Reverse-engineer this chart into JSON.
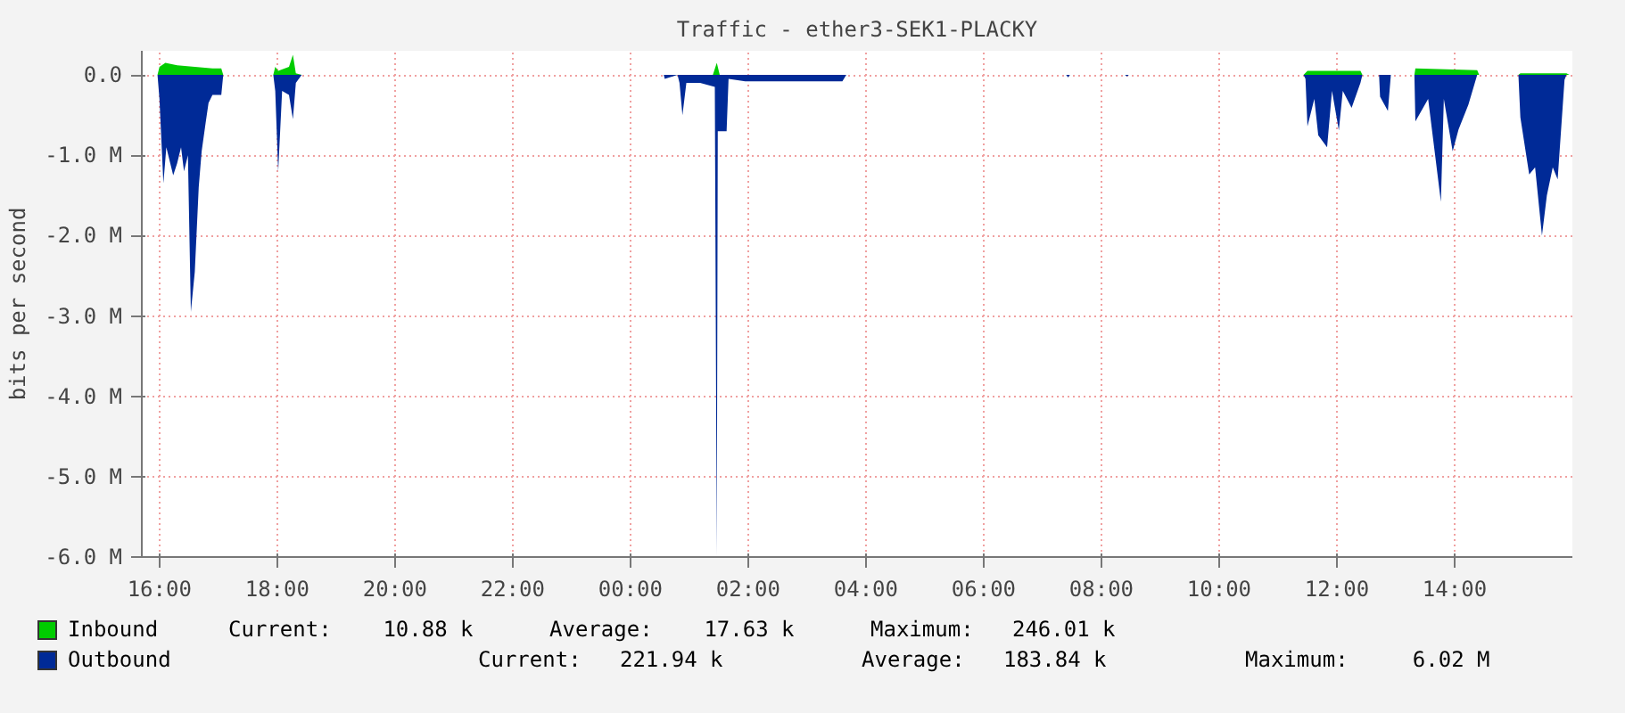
{
  "chart_data": {
    "type": "area",
    "title": "Traffic - ether3-SEK1-PLACKY",
    "ylabel": "bits per second",
    "xlim": [
      "2000-01-01T15:42",
      "2000-01-02T16:00"
    ],
    "ylim": [
      -6.0,
      0.3
    ],
    "xticks": [
      {
        "value": "2000-01-01T16:00",
        "label": "16:00"
      },
      {
        "value": "2000-01-01T18:00",
        "label": "18:00"
      },
      {
        "value": "2000-01-01T20:00",
        "label": "20:00"
      },
      {
        "value": "2000-01-01T22:00",
        "label": "22:00"
      },
      {
        "value": "2000-01-02T00:00",
        "label": "00:00"
      },
      {
        "value": "2000-01-02T02:00",
        "label": "02:00"
      },
      {
        "value": "2000-01-02T04:00",
        "label": "04:00"
      },
      {
        "value": "2000-01-02T06:00",
        "label": "06:00"
      },
      {
        "value": "2000-01-02T08:00",
        "label": "08:00"
      },
      {
        "value": "2000-01-02T10:00",
        "label": "10:00"
      },
      {
        "value": "2000-01-02T12:00",
        "label": "12:00"
      },
      {
        "value": "2000-01-02T14:00",
        "label": "14:00"
      }
    ],
    "yticks": [
      {
        "value": -6,
        "label": "-6.0 M"
      },
      {
        "value": -5,
        "label": "-5.0 M"
      },
      {
        "value": -4,
        "label": "-4.0 M"
      },
      {
        "value": -3,
        "label": "-3.0 M"
      },
      {
        "value": -2,
        "label": "-2.0 M"
      },
      {
        "value": -1,
        "label": "-1.0 M"
      },
      {
        "value": 0,
        "label": "0.0"
      }
    ],
    "grid": true,
    "legend": "bottom",
    "annotations": [
      "Current:    10.88 k",
      "Average:    17.63 k",
      "Maximum:   246.01 k",
      "Current:   221.94 k",
      "Average:   183.84 k",
      "Maximum:     6.02 M"
    ],
    "series": [
      {
        "name": "Outbound",
        "color": "#002a97",
        "x": [
          "2000-01-01T15:48",
          "2000-01-01T15:58",
          "2000-01-01T16:00",
          "2000-01-01T16:04",
          "2000-01-01T16:07",
          "2000-01-01T16:11",
          "2000-01-01T16:14",
          "2000-01-01T16:18",
          "2000-01-01T16:22",
          "2000-01-01T16:25",
          "2000-01-01T16:29",
          "2000-01-01T16:32",
          "2000-01-01T16:36",
          "2000-01-01T16:40",
          "2000-01-01T16:43",
          "2000-01-01T16:47",
          "2000-01-01T16:50",
          "2000-01-01T16:54",
          "2000-01-01T17:03",
          "2000-01-01T17:05",
          "2000-01-01T17:56",
          "2000-01-01T17:58",
          "2000-01-01T18:01",
          "2000-01-01T18:05",
          "2000-01-01T18:12",
          "2000-01-01T18:16",
          "2000-01-01T18:19",
          "2000-01-01T18:25",
          "2000-01-02T00:34",
          "2000-01-02T00:35",
          "2000-01-02T00:48",
          "2000-01-02T00:50",
          "2000-01-02T00:53",
          "2000-01-02T00:57",
          "2000-01-02T01:11",
          "2000-01-02T01:26",
          "2000-01-02T01:28",
          "2000-01-02T01:29",
          "2000-01-02T01:38",
          "2000-01-02T01:40",
          "2000-01-02T01:57",
          "2000-01-02T03:36",
          "2000-01-02T03:40",
          "2000-01-02T07:24",
          "2000-01-02T07:26",
          "2000-01-02T07:28",
          "2000-01-02T08:24",
          "2000-01-02T08:26",
          "2000-01-02T08:28",
          "2000-01-02T11:26",
          "2000-01-02T11:28",
          "2000-01-02T11:30",
          "2000-01-02T11:37",
          "2000-01-02T11:41",
          "2000-01-02T11:50",
          "2000-01-02T11:55",
          "2000-01-02T12:02",
          "2000-01-02T12:06",
          "2000-01-02T12:15",
          "2000-01-02T12:24",
          "2000-01-02T12:26",
          "2000-01-02T12:43",
          "2000-01-02T12:44",
          "2000-01-02T12:52",
          "2000-01-02T12:55",
          "2000-01-02T13:19",
          "2000-01-02T13:20",
          "2000-01-02T13:33",
          "2000-01-02T13:46",
          "2000-01-02T13:49",
          "2000-01-02T13:58",
          "2000-01-02T14:04",
          "2000-01-02T14:14",
          "2000-01-02T14:23",
          "2000-01-02T15:05",
          "2000-01-02T15:07",
          "2000-01-02T15:16",
          "2000-01-02T15:22",
          "2000-01-02T15:29",
          "2000-01-02T15:34",
          "2000-01-02T15:40",
          "2000-01-02T15:45",
          "2000-01-02T15:52",
          "2000-01-02T15:54",
          "2000-01-02T15:57"
        ],
        "values": [
          0,
          0,
          -0.3,
          -1.35,
          -0.9,
          -1.1,
          -1.25,
          -1.1,
          -0.9,
          -1.2,
          -1.0,
          -2.95,
          -2.45,
          -1.4,
          -0.95,
          -0.6,
          -0.35,
          -0.25,
          -0.25,
          0,
          0,
          -0.2,
          -1.2,
          -0.2,
          -0.25,
          -0.55,
          -0.1,
          0,
          0,
          -0.05,
          0,
          -0.1,
          -0.5,
          -0.1,
          -0.1,
          -0.15,
          -6.0,
          -0.7,
          -0.7,
          -0.05,
          -0.08,
          -0.08,
          0,
          0,
          -0.03,
          0,
          0,
          -0.02,
          0,
          0,
          -0.05,
          -0.64,
          -0.3,
          -0.75,
          -0.9,
          -0.2,
          -0.69,
          -0.2,
          -0.41,
          -0.1,
          0,
          0,
          -0.27,
          -0.45,
          0,
          0,
          -0.58,
          -0.3,
          -1.58,
          -0.3,
          -0.95,
          -0.68,
          -0.37,
          0,
          0,
          -0.53,
          -1.24,
          -1.15,
          -2.0,
          -1.5,
          -1.15,
          -1.3,
          -0.06,
          0,
          0
        ]
      },
      {
        "name": "Inbound",
        "color": "#00cc00",
        "x": [
          "2000-01-01T15:48",
          "2000-01-01T15:58",
          "2000-01-01T16:00",
          "2000-01-01T16:06",
          "2000-01-01T16:18",
          "2000-01-01T16:36",
          "2000-01-01T16:54",
          "2000-01-01T17:03",
          "2000-01-01T17:05",
          "2000-01-01T17:56",
          "2000-01-01T17:58",
          "2000-01-01T18:01",
          "2000-01-01T18:12",
          "2000-01-01T18:16",
          "2000-01-01T18:19",
          "2000-01-01T18:25",
          "2000-01-02T01:24",
          "2000-01-02T01:28",
          "2000-01-02T01:31",
          "2000-01-02T11:26",
          "2000-01-02T11:30",
          "2000-01-02T12:24",
          "2000-01-02T12:26",
          "2000-01-02T13:19",
          "2000-01-02T13:20",
          "2000-01-02T14:23",
          "2000-01-02T14:25",
          "2000-01-02T15:05",
          "2000-01-02T15:07",
          "2000-01-02T15:54",
          "2000-01-02T15:57"
        ],
        "values": [
          0,
          0,
          0.1,
          0.15,
          0.12,
          0.1,
          0.08,
          0.08,
          0,
          0,
          0.1,
          0.05,
          0.1,
          0.25,
          0.02,
          0,
          0,
          0.15,
          0,
          0,
          0.05,
          0.05,
          0,
          0,
          0.08,
          0.06,
          0,
          0,
          0.02,
          0.02,
          0
        ]
      }
    ]
  }
}
